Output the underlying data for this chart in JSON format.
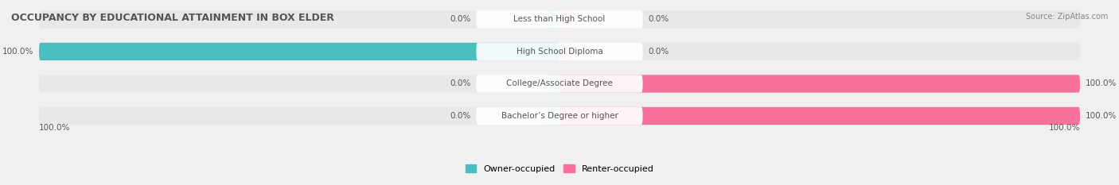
{
  "title": "OCCUPANCY BY EDUCATIONAL ATTAINMENT IN BOX ELDER",
  "source": "Source: ZipAtlas.com",
  "categories": [
    "Less than High School",
    "High School Diploma",
    "College/Associate Degree",
    "Bachelor’s Degree or higher"
  ],
  "owner_values": [
    0.0,
    100.0,
    0.0,
    0.0
  ],
  "renter_values": [
    0.0,
    0.0,
    100.0,
    100.0
  ],
  "owner_color": "#4BBFBF",
  "renter_color": "#F7719A",
  "owner_light_color": "#A8DCDC",
  "renter_light_color": "#FBBED3",
  "bg_color": "#F0F0F0",
  "bar_bg_color": "#E8E8E8",
  "title_color": "#555555",
  "label_color": "#555555",
  "value_color": "#555555",
  "legend_owner": "Owner-occupied",
  "legend_renter": "Renter-occupied",
  "max_val": 100.0,
  "figsize": [
    14.06,
    2.33
  ],
  "dpi": 100
}
